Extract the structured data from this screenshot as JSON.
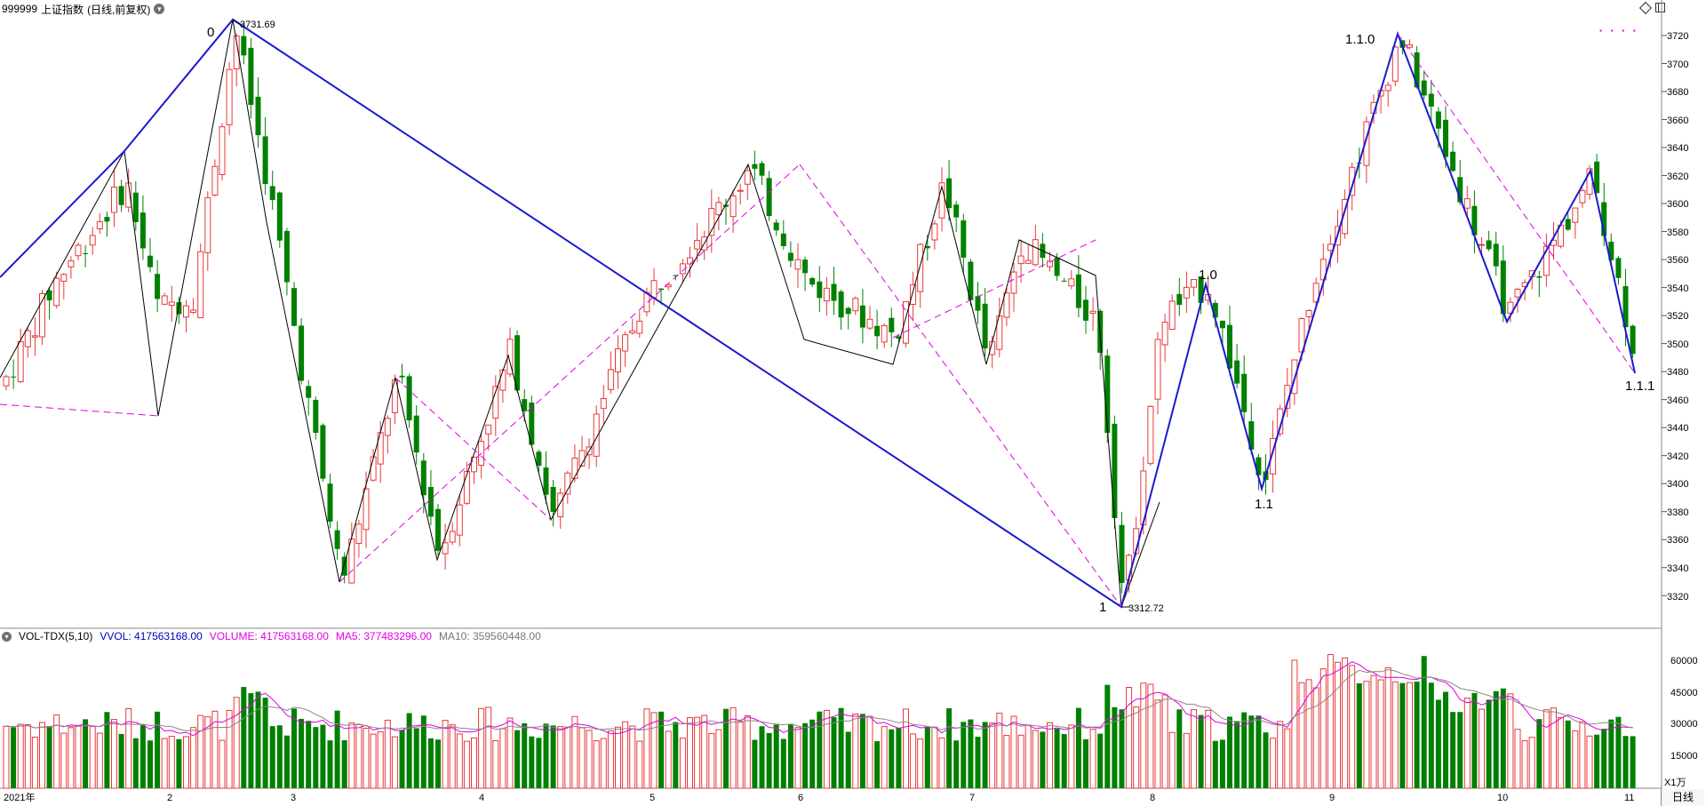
{
  "header": {
    "code": "999999",
    "name": "上证指数",
    "mode": "(日线,前复权)"
  },
  "price_chart": {
    "y_ticks": [
      "3720",
      "3700",
      "3680",
      "3660",
      "3640",
      "3620",
      "3600",
      "3580",
      "3560",
      "3540",
      "3520",
      "3500",
      "3480",
      "3460",
      "3440",
      "3420",
      "3400",
      "3380",
      "3360",
      "3340",
      "3320"
    ],
    "labels": {
      "high_value": "3731.69",
      "low_value": "3312.72",
      "wave_0": "0",
      "wave_1": "1",
      "wave_1_0": "1.0",
      "wave_1_1": "1.1",
      "wave_1_1_0": "1.1.0",
      "wave_1_1_1": "1.1.1"
    }
  },
  "volume_panel": {
    "title": "VOL-TDX(5,10)",
    "vvol": "VVOL: 417563168.00",
    "volume": "VOLUME: 417563168.00",
    "ma5": "MA5: 377483296.00",
    "ma10": "MA10: 359560448.00",
    "y_ticks": [
      "60000",
      "45000",
      "30000",
      "15000"
    ],
    "unit": "X1万"
  },
  "x_axis": {
    "months": [
      "2021年",
      "2",
      "3",
      "4",
      "5",
      "6",
      "7",
      "8",
      "9",
      "10",
      "11"
    ]
  },
  "period_button": "日线",
  "colors": {
    "up": "#e8383a",
    "down": "#008000",
    "blue_line": "#1a1ad0",
    "magenta": "#e000e0",
    "grid": "#d0d0d0"
  }
}
